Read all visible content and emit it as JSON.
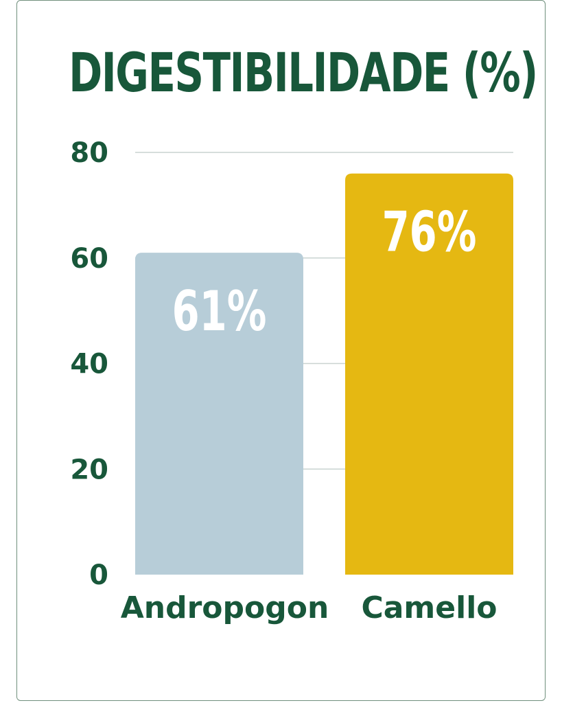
{
  "chart_data": {
    "type": "bar",
    "title": "DIGESTIBILIDADE (%)",
    "categories": [
      "Andropogon",
      "Camello"
    ],
    "values": [
      61,
      76
    ],
    "data_labels": [
      "61%",
      "76%"
    ],
    "bar_colors": [
      "#b7cdd8",
      "#e5b812"
    ],
    "ylim": [
      0,
      80
    ],
    "yticks": [
      0,
      20,
      40,
      60,
      80
    ],
    "ytick_labels": [
      "0",
      "20",
      "40",
      "60",
      "80"
    ],
    "grid": true,
    "xlabel": "",
    "ylabel": ""
  },
  "colors": {
    "text": "#18573a",
    "grid": "#c9d3d0",
    "border": "#6f8f7c"
  }
}
